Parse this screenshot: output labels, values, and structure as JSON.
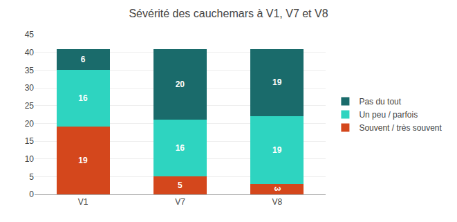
{
  "chart_data": {
    "type": "bar",
    "title": "Sévérité des cauchemars à V1, V7 et V8",
    "categories": [
      "V1",
      "V7",
      "V8"
    ],
    "series": [
      {
        "name": "Souvent / très souvent",
        "color": "#D4471C",
        "values": [
          19,
          5,
          3
        ]
      },
      {
        "name": "Un peu / parfois",
        "color": "#2ED4C0",
        "values": [
          16,
          16,
          19
        ]
      },
      {
        "name": "Pas du tout",
        "color": "#1A6B6B",
        "values": [
          6,
          20,
          19
        ]
      }
    ],
    "stacked": true,
    "data_labels": true,
    "ylim": [
      0,
      45
    ],
    "yticks": [
      0,
      5,
      10,
      15,
      20,
      25,
      30,
      35,
      40,
      45
    ],
    "grid": true,
    "legend": "right"
  }
}
